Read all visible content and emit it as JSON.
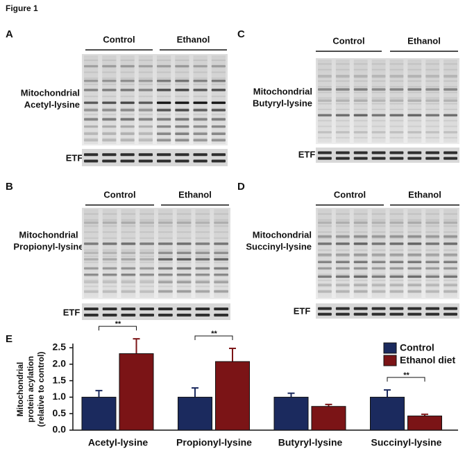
{
  "figure_title": "Figure 1",
  "panels": [
    {
      "letter": "A",
      "groups": [
        "Control",
        "Ethanol"
      ],
      "blot_label": [
        "Mitochondrial",
        "Acetyl-lysine"
      ],
      "loading_label": "ETF"
    },
    {
      "letter": "C",
      "groups": [
        "Control",
        "Ethanol"
      ],
      "blot_label": [
        "Mitochondrial",
        "Butyryl-lysine"
      ],
      "loading_label": "ETF"
    },
    {
      "letter": "B",
      "groups": [
        "Control",
        "Ethanol"
      ],
      "blot_label": [
        "Mitochondrial",
        "Propionyl-lysine"
      ],
      "loading_label": "ETF"
    },
    {
      "letter": "D",
      "groups": [
        "Control",
        "Ethanol"
      ],
      "blot_label": [
        "Mitochondrial",
        "Succinyl-lysine"
      ],
      "loading_label": "ETF"
    }
  ],
  "chart_letter": "E",
  "chart_data": {
    "type": "bar",
    "y_label": [
      "Mitochondrial",
      "protein acylation",
      "(relative to control)"
    ],
    "categories": [
      "Acetyl-lysine",
      "Propionyl-lysine",
      "Butyryl-lysine",
      "Succinyl-lysine"
    ],
    "series": [
      {
        "name": "Control",
        "color": "#1b2a5e",
        "values": [
          1.0,
          1.0,
          1.0,
          1.0
        ],
        "errors": [
          0.2,
          0.28,
          0.12,
          0.22
        ]
      },
      {
        "name": "Ethanol diet",
        "color": "#7b1416",
        "values": [
          2.32,
          2.08,
          0.72,
          0.43
        ],
        "errors": [
          0.45,
          0.4,
          0.06,
          0.05
        ]
      }
    ],
    "ylim": [
      0,
      2.5
    ],
    "yticks": [
      {
        "value": 0,
        "label": "0.0"
      },
      0.5,
      {
        "value": 1,
        "label": "1.0"
      },
      1.5,
      {
        "value": 2,
        "label": "2.0"
      },
      2.5
    ],
    "annotations": [
      {
        "category": 0,
        "label": "**"
      },
      {
        "category": 1,
        "label": "**"
      },
      {
        "category": 3,
        "label": "**"
      }
    ],
    "legend": "upper right"
  }
}
